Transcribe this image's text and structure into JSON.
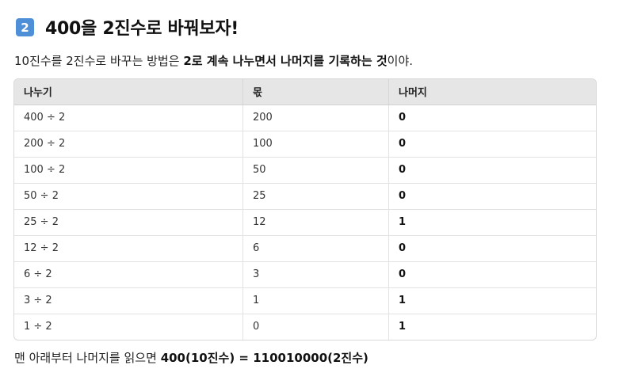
{
  "heading": {
    "badge": "2",
    "title": "400을 2진수로 바꿔보자!"
  },
  "intro": {
    "prefix": "10진수를 2진수로 바꾸는 방법은 ",
    "bold": "2로 계속 나누면서 나머지를 기록하는 것",
    "suffix": "이야."
  },
  "table": {
    "headers": [
      "나누기",
      "몫",
      "나머지"
    ],
    "rows": [
      [
        "400 ÷ 2",
        "200",
        "0"
      ],
      [
        "200 ÷ 2",
        "100",
        "0"
      ],
      [
        "100 ÷ 2",
        "50",
        "0"
      ],
      [
        "50 ÷ 2",
        "25",
        "0"
      ],
      [
        "25 ÷ 2",
        "12",
        "1"
      ],
      [
        "12 ÷ 2",
        "6",
        "0"
      ],
      [
        "6 ÷ 2",
        "3",
        "0"
      ],
      [
        "3 ÷ 2",
        "1",
        "1"
      ],
      [
        "1 ÷ 2",
        "0",
        "1"
      ]
    ]
  },
  "outro": {
    "prefix": "맨 아래부터 나머지를 읽으면 ",
    "bold": "400(10진수) = 110010000(2진수)"
  }
}
